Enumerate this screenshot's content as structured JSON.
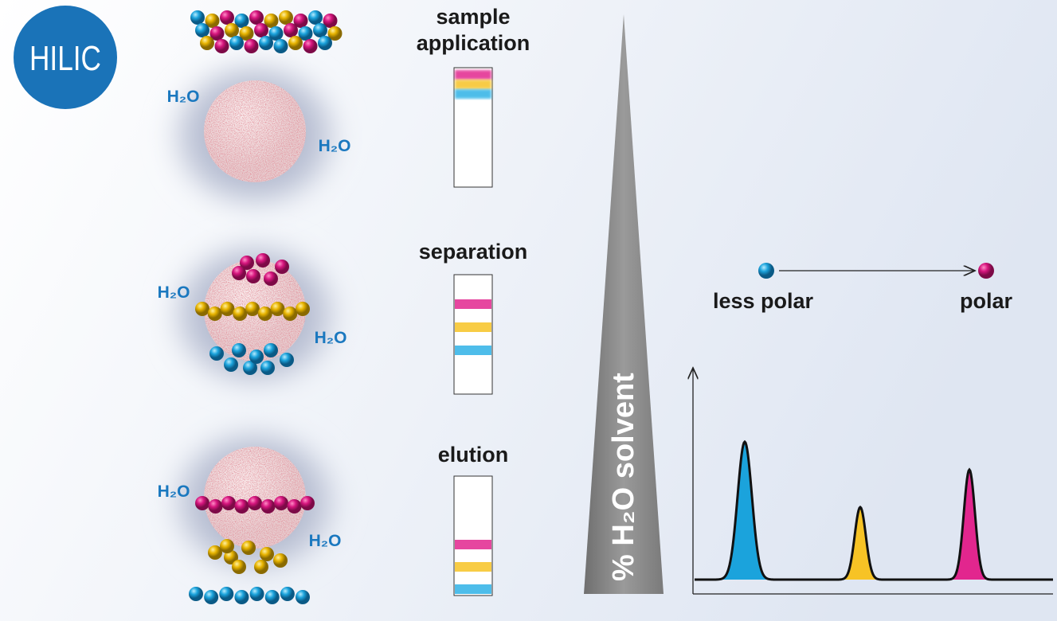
{
  "badge": "HILIC",
  "stages": [
    {
      "label": [
        "sample",
        "application"
      ],
      "water": [
        "H₂O",
        "H₂O"
      ]
    },
    {
      "label": [
        "separation"
      ],
      "water": [
        "H₂O",
        "H₂O"
      ]
    },
    {
      "label": [
        "elution"
      ],
      "water": [
        "H₂O",
        "H₂O"
      ]
    }
  ],
  "gradient_label": "% H₂O solvent",
  "polarity": {
    "low": "less polar",
    "high": "polar"
  }
}
